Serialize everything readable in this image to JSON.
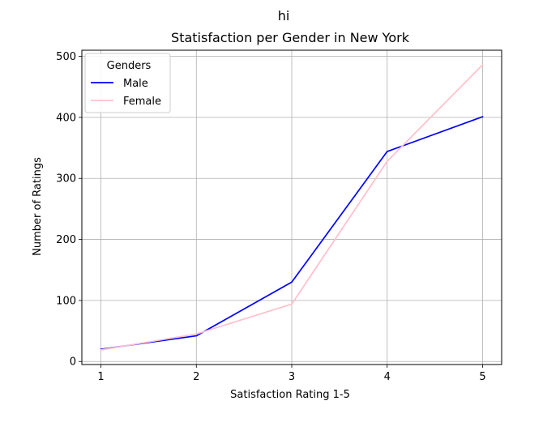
{
  "chart_data": {
    "type": "line",
    "suptitle": "hi",
    "title": "Statisfaction per Gender in New York",
    "xlabel": "Satisfaction Rating 1-5",
    "ylabel": "Number of Ratings",
    "x": [
      1,
      2,
      3,
      4,
      5
    ],
    "xticks": [
      "1",
      "2",
      "3",
      "4",
      "5"
    ],
    "yticks": [
      0,
      100,
      200,
      300,
      400,
      500
    ],
    "xlim": [
      0.8,
      5.2
    ],
    "ylim": [
      -5,
      510
    ],
    "grid": true,
    "legend": {
      "title": "Genders",
      "position": "top-left"
    },
    "series": [
      {
        "name": "Male",
        "color": "#0000ff",
        "values": [
          20,
          42,
          130,
          344,
          401
        ]
      },
      {
        "name": "Female",
        "color": "#ffc0cb",
        "values": [
          19,
          45,
          94,
          328,
          486
        ]
      }
    ]
  }
}
